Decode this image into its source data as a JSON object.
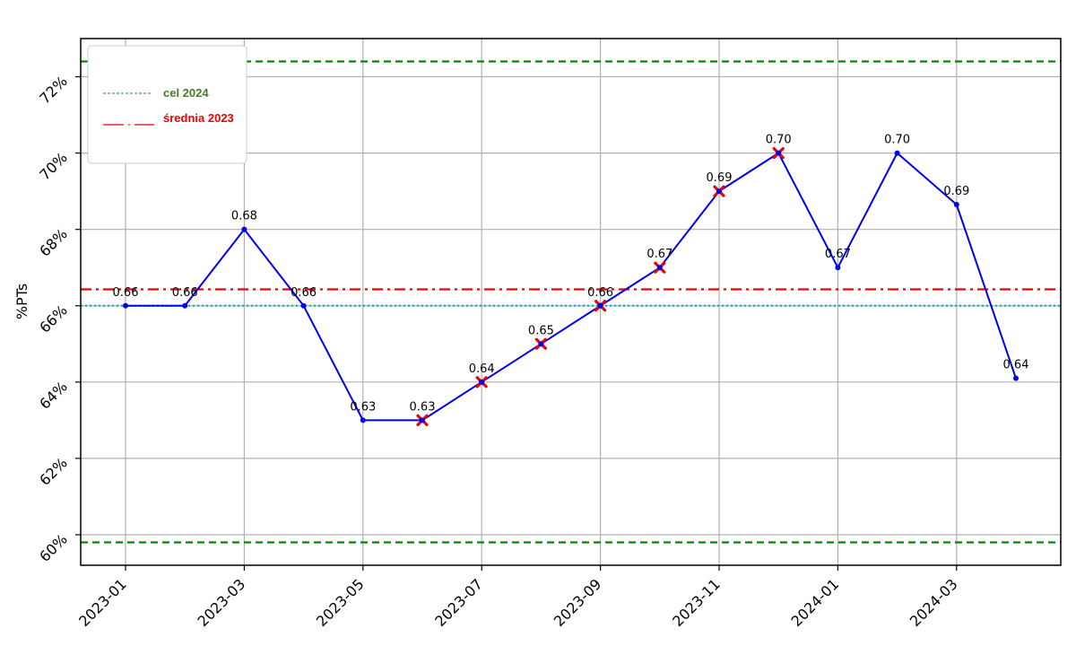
{
  "chart_data": {
    "type": "line",
    "ylabel": "%PTs",
    "xlabel": "",
    "title": "",
    "x": [
      "2023-01",
      "2023-02",
      "2023-03",
      "2023-04",
      "2023-05",
      "2023-06",
      "2023-07",
      "2023-08",
      "2023-09",
      "2023-10",
      "2023-11",
      "2023-12",
      "2024-01",
      "2024-02",
      "2024-03",
      "2024-04"
    ],
    "x_tick_labels": [
      "2023-01",
      "2023-03",
      "2023-05",
      "2023-07",
      "2023-09",
      "2023-11",
      "2024-01",
      "2024-03"
    ],
    "y_tick_labels": [
      "60%",
      "62%",
      "64%",
      "66%",
      "68%",
      "70%",
      "72%"
    ],
    "y_ticks": [
      0.6,
      0.62,
      0.64,
      0.66,
      0.68,
      0.7,
      0.72
    ],
    "ylim": [
      0.592,
      0.73
    ],
    "grid": true,
    "series": [
      {
        "color": "#0000ee",
        "values": [
          0.66,
          0.66,
          0.68,
          0.66,
          0.63,
          0.63,
          0.64,
          0.65,
          0.66,
          0.67,
          0.69,
          0.7,
          0.67,
          0.7,
          0.6865,
          0.641
        ],
        "data_labels": [
          "0.66",
          "0.66",
          "0.68",
          "0.66",
          "0.63",
          "0.63",
          "0.64",
          "0.65",
          "0.66",
          "0.67",
          "0.69",
          "0.70",
          "0.67",
          "0.70",
          "0.69",
          "0.64"
        ]
      }
    ],
    "x_markers": {
      "color": "#ee0000",
      "x": [
        "2023-06",
        "2023-07",
        "2023-08",
        "2023-09",
        "2023-10",
        "2023-11",
        "2023-12"
      ]
    },
    "reference_lines": [
      {
        "value": 0.724,
        "color": "#008800",
        "style": "dashed"
      },
      {
        "value": 0.598,
        "color": "#008800",
        "style": "dashed"
      },
      {
        "value": 0.6643,
        "color": "#ee0000",
        "style": "dashdot"
      },
      {
        "value": 0.66,
        "color": "#00bbbb",
        "style": "dotted"
      }
    ],
    "legend": {
      "placement": "top-left",
      "entries": [
        {
          "label": "cel 2024",
          "color": "#4a7a2a",
          "sample_color": "#2f7f2f"
        },
        {
          "label": "średnia 2023",
          "color": "#ee0000",
          "sample_color": "#ee0000"
        }
      ]
    }
  }
}
